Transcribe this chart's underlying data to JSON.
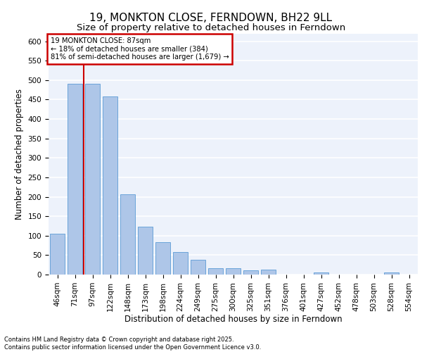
{
  "title_line1": "19, MONKTON CLOSE, FERNDOWN, BH22 9LL",
  "title_line2": "Size of property relative to detached houses in Ferndown",
  "categories": [
    "46sqm",
    "71sqm",
    "97sqm",
    "122sqm",
    "148sqm",
    "173sqm",
    "198sqm",
    "224sqm",
    "249sqm",
    "275sqm",
    "300sqm",
    "325sqm",
    "351sqm",
    "376sqm",
    "401sqm",
    "427sqm",
    "452sqm",
    "478sqm",
    "503sqm",
    "528sqm",
    "554sqm"
  ],
  "values": [
    105,
    490,
    490,
    458,
    207,
    123,
    83,
    58,
    38,
    16,
    16,
    11,
    12,
    0,
    0,
    6,
    0,
    0,
    0,
    5,
    0
  ],
  "bar_color": "#aec6e8",
  "bar_edge_color": "#5b9bd5",
  "ylabel": "Number of detached properties",
  "xlabel": "Distribution of detached houses by size in Ferndown",
  "ylim": [
    0,
    620
  ],
  "yticks": [
    0,
    50,
    100,
    150,
    200,
    250,
    300,
    350,
    400,
    450,
    500,
    550,
    600
  ],
  "vline_color": "#cc0000",
  "annotation_title": "19 MONKTON CLOSE: 87sqm",
  "annotation_line1": "← 18% of detached houses are smaller (384)",
  "annotation_line2": "81% of semi-detached houses are larger (1,679) →",
  "annotation_box_color": "#cc0000",
  "background_color": "#edf2fb",
  "footer_line1": "Contains HM Land Registry data © Crown copyright and database right 2025.",
  "footer_line2": "Contains public sector information licensed under the Open Government Licence v3.0.",
  "grid_color": "#ffffff",
  "title_fontsize": 11,
  "subtitle_fontsize": 9.5,
  "axis_label_fontsize": 8.5,
  "tick_fontsize": 7.5,
  "footer_fontsize": 6.0
}
